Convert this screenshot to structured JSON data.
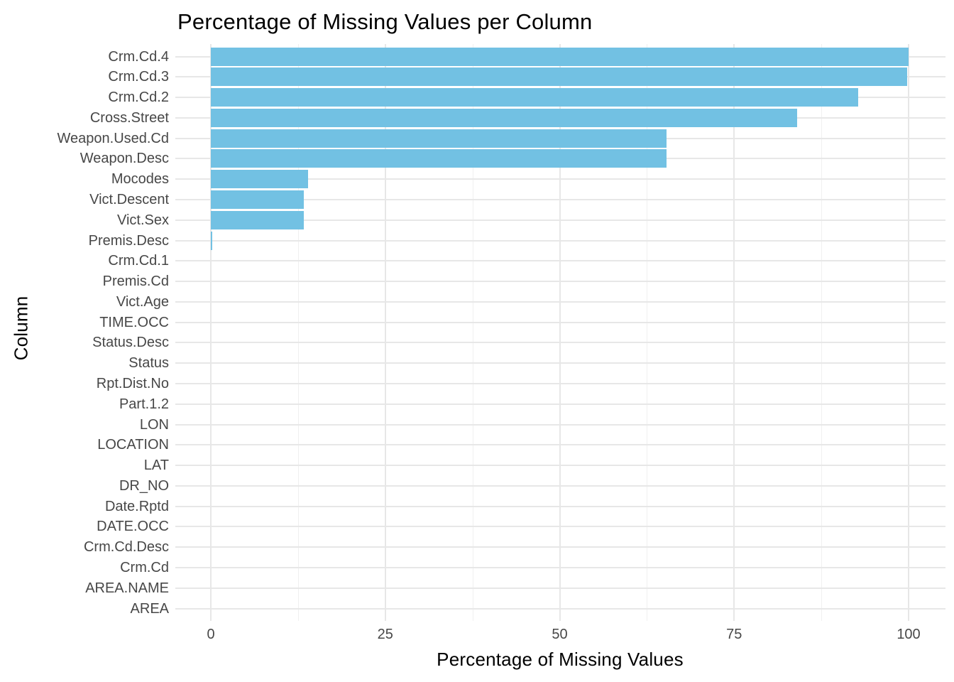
{
  "chart_data": {
    "type": "bar",
    "orientation": "horizontal",
    "title": "Percentage of Missing Values per Column",
    "xlabel": "Percentage of Missing Values",
    "ylabel": "Column",
    "categories": [
      "Crm.Cd.4",
      "Crm.Cd.3",
      "Crm.Cd.2",
      "Cross.Street",
      "Weapon.Used.Cd",
      "Weapon.Desc",
      "Mocodes",
      "Vict.Descent",
      "Vict.Sex",
      "Premis.Desc",
      "Crm.Cd.1",
      "Premis.Cd",
      "Vict.Age",
      "TIME.OCC",
      "Status.Desc",
      "Status",
      "Rpt.Dist.No",
      "Part.1.2",
      "LON",
      "LOCATION",
      "LAT",
      "DR_NO",
      "Date.Rptd",
      "DATE.OCC",
      "Crm.Cd.Desc",
      "Crm.Cd",
      "AREA.NAME",
      "AREA"
    ],
    "values": [
      100,
      99.8,
      92.8,
      84.0,
      65.3,
      65.3,
      13.9,
      13.3,
      13.3,
      0.2,
      0,
      0,
      0,
      0,
      0,
      0,
      0,
      0,
      0,
      0,
      0,
      0,
      0,
      0,
      0,
      0,
      0,
      0
    ],
    "xlim": [
      0,
      100
    ],
    "x_ticks": [
      0,
      25,
      50,
      75,
      100
    ],
    "x_minor_ticks": [
      12.5,
      37.5,
      62.5,
      87.5
    ],
    "grid": true,
    "legend": false,
    "colors": {
      "bar_fill": "#72C1E3",
      "grid_major": "#E7E7E7",
      "grid_minor": "#F0F0F0",
      "tick_label": "#474747",
      "title_text": "#000000",
      "background": "#FFFFFF"
    }
  }
}
